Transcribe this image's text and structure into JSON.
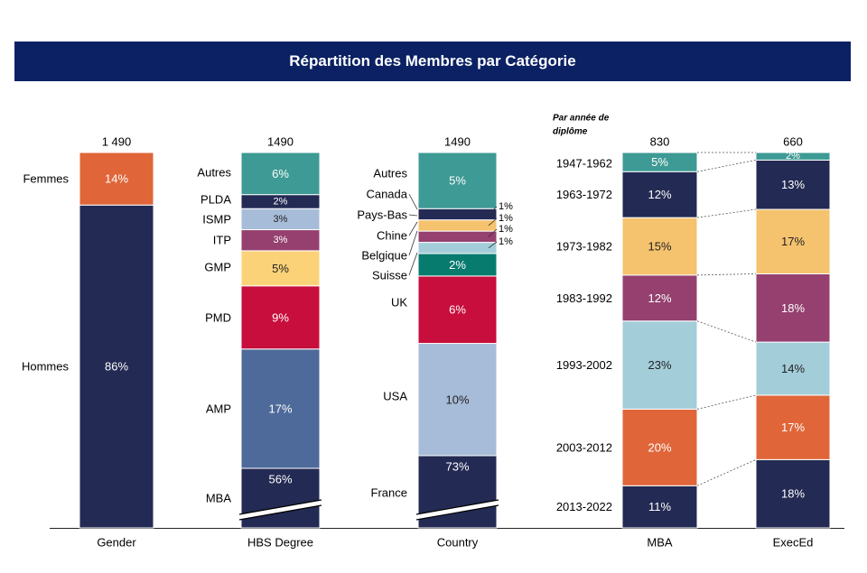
{
  "title": "Répartition des Membres par Catégorie",
  "chart_data": {
    "type": "bar",
    "subtype": "stacked-100-percent",
    "colors": {
      "navy": "#232a53",
      "orange": "#e0663a",
      "teal": "#3e9a94",
      "slate": "#4e6a9a",
      "lightblue": "#a7bcd8",
      "purple": "#95406f",
      "yellow": "#fbd277",
      "red": "#c70e3c",
      "darkteal": "#087b6f",
      "skyblue": "#a3cdd9",
      "sand": "#f5c26e"
    },
    "bars": [
      {
        "category": "Gender",
        "total": "1 490",
        "segments": [
          {
            "label": "Hommes",
            "value": 86,
            "display": "86%",
            "color": "navy"
          },
          {
            "label": "Femmes",
            "value": 14,
            "display": "14%",
            "color": "orange"
          }
        ]
      },
      {
        "category": "HBS Degree",
        "total": "1490",
        "broken_axis": true,
        "segments": [
          {
            "label": "MBA",
            "value": 56,
            "display": "56%",
            "color": "navy"
          },
          {
            "label": "AMP",
            "value": 17,
            "display": "17%",
            "color": "slate"
          },
          {
            "label": "PMD",
            "value": 9,
            "display": "9%",
            "color": "red"
          },
          {
            "label": "GMP",
            "value": 5,
            "display": "5%",
            "color": "yellow"
          },
          {
            "label": "ITP",
            "value": 3,
            "display": "3%",
            "color": "purple"
          },
          {
            "label": "ISMP",
            "value": 3,
            "display": "3%",
            "color": "lightblue"
          },
          {
            "label": "PLDA",
            "value": 2,
            "display": "2%",
            "color": "navy"
          },
          {
            "label": "Autres",
            "value": 6,
            "display": "6%",
            "color": "teal"
          }
        ]
      },
      {
        "category": "Country",
        "total": "1490",
        "broken_axis": true,
        "segments": [
          {
            "label": "France",
            "value": 73,
            "display": "73%",
            "color": "navy"
          },
          {
            "label": "USA",
            "value": 10,
            "display": "10%",
            "color": "lightblue"
          },
          {
            "label": "UK",
            "value": 6,
            "display": "6%",
            "color": "red"
          },
          {
            "label": "Suisse",
            "value": 2,
            "display": "2%",
            "color": "darkteal"
          },
          {
            "label": "Belgique",
            "value": 1,
            "display": "1%",
            "color": "skyblue"
          },
          {
            "label": "Chine",
            "value": 1,
            "display": "1%",
            "color": "purple"
          },
          {
            "label": "Pays-Bas",
            "value": 1,
            "display": "1%",
            "color": "sand"
          },
          {
            "label": "Canada",
            "value": 1,
            "display": "1%",
            "color": "navy"
          },
          {
            "label": "Autres",
            "value": 5,
            "display": "5%",
            "color": "teal"
          }
        ]
      }
    ],
    "graduation": {
      "header": "Par année de diplôme",
      "periods": [
        "2013-2022",
        "2003-2012",
        "1993-2002",
        "1983-1992",
        "1973-1982",
        "1963-1972",
        "1947-1962"
      ],
      "period_colors": [
        "navy",
        "orange",
        "skyblue",
        "purple",
        "sand",
        "navy",
        "teal"
      ],
      "series": [
        {
          "name": "MBA",
          "total": "830",
          "values": [
            11,
            20,
            23,
            12,
            15,
            12,
            5
          ],
          "display": [
            "11%",
            "20%",
            "23%",
            "12%",
            "15%",
            "12%",
            "5%"
          ]
        },
        {
          "name": "ExecEd",
          "total": "660",
          "values": [
            18,
            17,
            14,
            18,
            17,
            13,
            2
          ],
          "display": [
            "18%",
            "17%",
            "14%",
            "18%",
            "17%",
            "13%",
            "2%"
          ]
        }
      ]
    }
  }
}
